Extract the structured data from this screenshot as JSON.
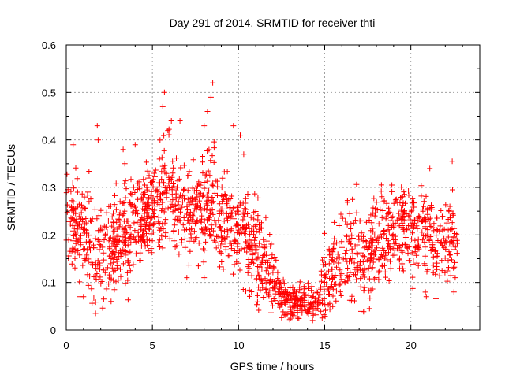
{
  "chart_data": {
    "type": "scatter",
    "title": "Day 291 of 2014, SRMTID for receiver thti",
    "xlabel": "GPS time / hours",
    "ylabel": "SRMTID / TECUs",
    "xlim": [
      0,
      24
    ],
    "ylim": [
      0,
      0.6
    ],
    "xticks": [
      0,
      5,
      10,
      15,
      20
    ],
    "xtick_labels": [
      "0",
      "5",
      "10",
      "15",
      "20"
    ],
    "yticks": [
      0,
      0.1,
      0.2,
      0.3,
      0.4,
      0.5,
      0.6
    ],
    "ytick_labels": [
      "0",
      "0.1",
      "0.2",
      "0.3",
      "0.4",
      "0.5",
      "0.6"
    ],
    "grid": true,
    "marker": "plus",
    "color": "#ff0000",
    "x_range_data": [
      0,
      22.7
    ],
    "trend": [
      {
        "x": 0.0,
        "y": 0.24
      },
      {
        "x": 0.5,
        "y": 0.22
      },
      {
        "x": 1.0,
        "y": 0.2
      },
      {
        "x": 1.5,
        "y": 0.18
      },
      {
        "x": 2.0,
        "y": 0.17
      },
      {
        "x": 2.5,
        "y": 0.16
      },
      {
        "x": 3.0,
        "y": 0.18
      },
      {
        "x": 3.5,
        "y": 0.2
      },
      {
        "x": 4.0,
        "y": 0.21
      },
      {
        "x": 4.5,
        "y": 0.24
      },
      {
        "x": 5.0,
        "y": 0.26
      },
      {
        "x": 5.5,
        "y": 0.28
      },
      {
        "x": 6.0,
        "y": 0.3
      },
      {
        "x": 6.5,
        "y": 0.27
      },
      {
        "x": 7.0,
        "y": 0.25
      },
      {
        "x": 7.5,
        "y": 0.24
      },
      {
        "x": 8.0,
        "y": 0.27
      },
      {
        "x": 8.5,
        "y": 0.28
      },
      {
        "x": 9.0,
        "y": 0.24
      },
      {
        "x": 9.5,
        "y": 0.22
      },
      {
        "x": 10.0,
        "y": 0.21
      },
      {
        "x": 10.5,
        "y": 0.19
      },
      {
        "x": 11.0,
        "y": 0.17
      },
      {
        "x": 11.5,
        "y": 0.14
      },
      {
        "x": 12.0,
        "y": 0.11
      },
      {
        "x": 12.5,
        "y": 0.07
      },
      {
        "x": 13.0,
        "y": 0.06
      },
      {
        "x": 13.5,
        "y": 0.06
      },
      {
        "x": 14.0,
        "y": 0.06
      },
      {
        "x": 14.5,
        "y": 0.05
      },
      {
        "x": 15.0,
        "y": 0.1
      },
      {
        "x": 15.5,
        "y": 0.13
      },
      {
        "x": 16.0,
        "y": 0.15
      },
      {
        "x": 16.5,
        "y": 0.16
      },
      {
        "x": 17.0,
        "y": 0.15
      },
      {
        "x": 17.5,
        "y": 0.16
      },
      {
        "x": 18.0,
        "y": 0.18
      },
      {
        "x": 18.5,
        "y": 0.19
      },
      {
        "x": 19.0,
        "y": 0.2
      },
      {
        "x": 19.5,
        "y": 0.21
      },
      {
        "x": 20.0,
        "y": 0.21
      },
      {
        "x": 20.5,
        "y": 0.2
      },
      {
        "x": 21.0,
        "y": 0.2
      },
      {
        "x": 21.5,
        "y": 0.19
      },
      {
        "x": 22.0,
        "y": 0.19
      },
      {
        "x": 22.5,
        "y": 0.18
      }
    ],
    "scatter_spread": 0.05,
    "outliers": [
      {
        "x": 1.8,
        "y": 0.43
      },
      {
        "x": 1.85,
        "y": 0.4
      },
      {
        "x": 0.4,
        "y": 0.39
      },
      {
        "x": 3.3,
        "y": 0.38
      },
      {
        "x": 3.4,
        "y": 0.35
      },
      {
        "x": 5.6,
        "y": 0.47
      },
      {
        "x": 5.7,
        "y": 0.5
      },
      {
        "x": 6.1,
        "y": 0.44
      },
      {
        "x": 5.9,
        "y": 0.42
      },
      {
        "x": 8.5,
        "y": 0.52
      },
      {
        "x": 8.4,
        "y": 0.49
      },
      {
        "x": 8.2,
        "y": 0.46
      },
      {
        "x": 8.0,
        "y": 0.43
      },
      {
        "x": 9.7,
        "y": 0.43
      },
      {
        "x": 10.1,
        "y": 0.41
      },
      {
        "x": 10.3,
        "y": 0.37
      },
      {
        "x": 1.0,
        "y": 0.07
      },
      {
        "x": 0.8,
        "y": 0.07
      },
      {
        "x": 1.7,
        "y": 0.035
      },
      {
        "x": 2.6,
        "y": 0.06
      },
      {
        "x": 18.9,
        "y": 0.305
      },
      {
        "x": 21.1,
        "y": 0.34
      },
      {
        "x": 22.4,
        "y": 0.355
      },
      {
        "x": 22.5,
        "y": 0.08
      },
      {
        "x": 20.9,
        "y": 0.07
      },
      {
        "x": 17.6,
        "y": 0.045
      },
      {
        "x": 18.4,
        "y": 0.27
      },
      {
        "x": 14.3,
        "y": 0.02
      },
      {
        "x": 13.2,
        "y": 0.03
      },
      {
        "x": 7.0,
        "y": 0.11
      },
      {
        "x": 8.0,
        "y": 0.11
      },
      {
        "x": 4.0,
        "y": 0.39
      },
      {
        "x": 6.6,
        "y": 0.44
      }
    ],
    "n_points": 1800
  }
}
